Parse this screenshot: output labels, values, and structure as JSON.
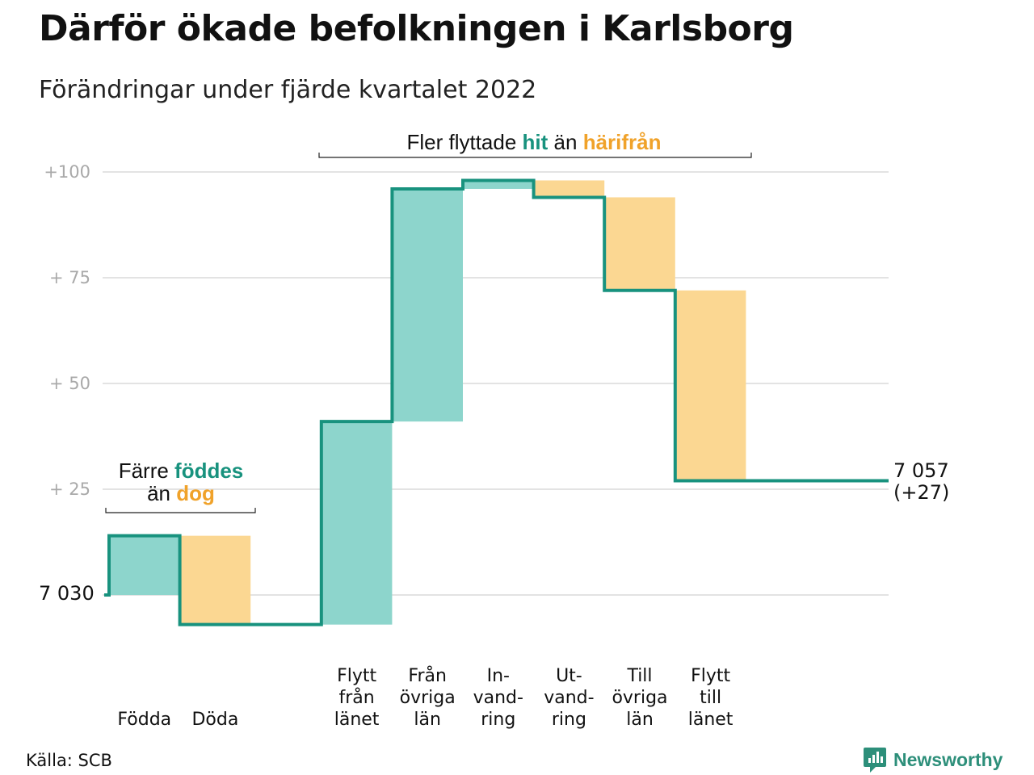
{
  "title": "Därför ökade befolkningen i Karlsborg",
  "subtitle": "Förändringar under fjärde kvartalet 2022",
  "source": "Källa: SCB",
  "brand": "Newsworthy",
  "colors": {
    "line": "#18927e",
    "increase": "#8dd5cc",
    "decrease": "#fbd792",
    "grid": "#e3e3e3",
    "highlight_teal": "#18927e",
    "highlight_orange": "#f0a22a"
  },
  "chart_data": {
    "type": "waterfall",
    "title": "Därför ökade befolkningen i Karlsborg",
    "subtitle": "Förändringar under fjärde kvartalet 2022",
    "start_value": 7030,
    "start_label": "7 030",
    "end_value": 7057,
    "end_label": "7 057",
    "end_change_label": "(+27)",
    "y_ticks": [
      {
        "value": 25,
        "label": "+ 25"
      },
      {
        "value": 50,
        "label": "+ 50"
      },
      {
        "value": 75,
        "label": "+ 75"
      },
      {
        "value": 100,
        "label": "+100"
      }
    ],
    "ylim": [
      -7,
      100
    ],
    "steps": [
      {
        "category": [
          "Födda"
        ],
        "change": 14,
        "type": "increase"
      },
      {
        "category": [
          "Döda"
        ],
        "change": -21,
        "type": "decrease"
      },
      {
        "category": [],
        "change": 0,
        "type": "gap"
      },
      {
        "category": [
          "Flytt",
          "från",
          "länet"
        ],
        "change": 48,
        "type": "increase"
      },
      {
        "category": [
          "Från",
          "övriga",
          "län"
        ],
        "change": 55,
        "type": "increase"
      },
      {
        "category": [
          "In-",
          "vand-",
          "ring"
        ],
        "change": 2,
        "type": "increase"
      },
      {
        "category": [
          "Ut-",
          "vand-",
          "ring"
        ],
        "change": -4,
        "type": "decrease"
      },
      {
        "category": [
          "Till",
          "övriga",
          "län"
        ],
        "change": -22,
        "type": "decrease"
      },
      {
        "category": [
          "Flytt",
          "till",
          "länet"
        ],
        "change": -45,
        "type": "decrease"
      }
    ],
    "annotations": {
      "births": {
        "line1_pre": "Färre ",
        "line1_hl": "föddes",
        "line2_pre": "än ",
        "line2_hl": "dog"
      },
      "migration": {
        "pre": "Fler flyttade ",
        "hl1": "hit",
        "mid": " än ",
        "hl2": "härifrån"
      }
    }
  }
}
